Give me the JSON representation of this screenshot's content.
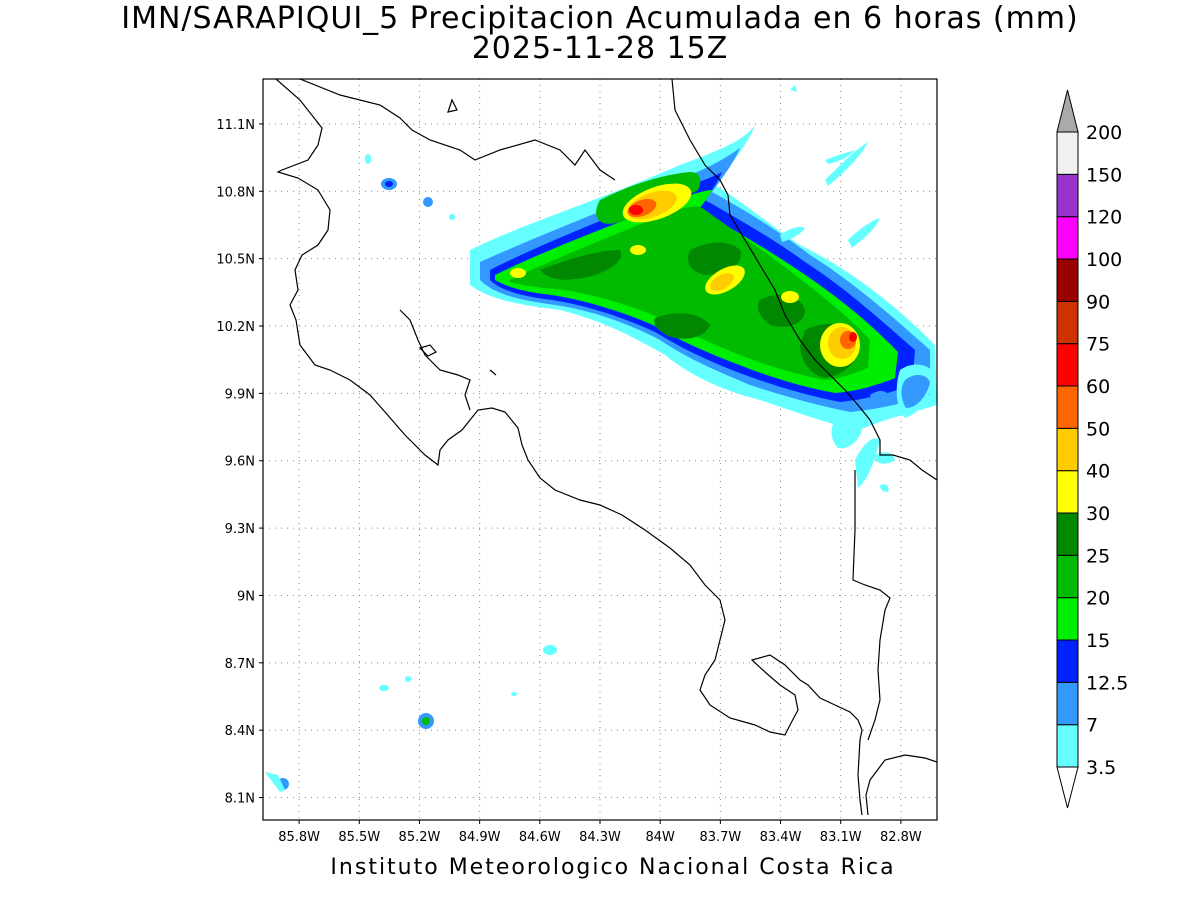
{
  "title_line1": "IMN/SARAPIQUI_5 Precipitacion Acumulada en 6 horas (mm)",
  "title_line2": "2025-11-28 15Z",
  "footer": "Instituto Meteorologico Nacional Costa Rica",
  "map": {
    "lon_range": [
      -85.98,
      -82.62
    ],
    "lat_range": [
      8.0,
      11.3
    ],
    "lat_ticks": [
      {
        "value": 8.1,
        "label": "8.1N"
      },
      {
        "value": 8.4,
        "label": "8.4N"
      },
      {
        "value": 8.7,
        "label": "8.7N"
      },
      {
        "value": 9.0,
        "label": "9N"
      },
      {
        "value": 9.3,
        "label": "9.3N"
      },
      {
        "value": 9.6,
        "label": "9.6N"
      },
      {
        "value": 9.9,
        "label": "9.9N"
      },
      {
        "value": 10.2,
        "label": "10.2N"
      },
      {
        "value": 10.5,
        "label": "10.5N"
      },
      {
        "value": 10.8,
        "label": "10.8N"
      },
      {
        "value": 11.1,
        "label": "11.1N"
      }
    ],
    "lon_ticks": [
      {
        "value": -85.8,
        "label": "85.8W"
      },
      {
        "value": -85.5,
        "label": "85.5W"
      },
      {
        "value": -85.2,
        "label": "85.2W"
      },
      {
        "value": -84.9,
        "label": "84.9W"
      },
      {
        "value": -84.6,
        "label": "84.6W"
      },
      {
        "value": -84.3,
        "label": "84.3W"
      },
      {
        "value": -84.0,
        "label": "84W"
      },
      {
        "value": -83.7,
        "label": "83.7W"
      },
      {
        "value": -83.4,
        "label": "83.4W"
      },
      {
        "value": -83.1,
        "label": "83.1W"
      },
      {
        "value": -82.8,
        "label": "82.8W"
      }
    ],
    "grid": "dotted"
  },
  "colorbar": {
    "levels": [
      {
        "label": "3.5",
        "color": "#66ffff"
      },
      {
        "label": "7",
        "color": "#3399ff"
      },
      {
        "label": "12.5",
        "color": "#0022ff"
      },
      {
        "label": "15",
        "color": "#00ee00"
      },
      {
        "label": "20",
        "color": "#00bb00"
      },
      {
        "label": "25",
        "color": "#008800"
      },
      {
        "label": "30",
        "color": "#ffff00"
      },
      {
        "label": "40",
        "color": "#ffcc00"
      },
      {
        "label": "50",
        "color": "#ff6600"
      },
      {
        "label": "60",
        "color": "#ff0000"
      },
      {
        "label": "75",
        "color": "#cc3300"
      },
      {
        "label": "90",
        "color": "#990000"
      },
      {
        "label": "100",
        "color": "#ff00ff"
      },
      {
        "label": "120",
        "color": "#9933cc"
      },
      {
        "label": "150",
        "color": "#f0f0f0"
      },
      {
        "label": "200",
        "color": "#aaaaaa"
      }
    ]
  }
}
